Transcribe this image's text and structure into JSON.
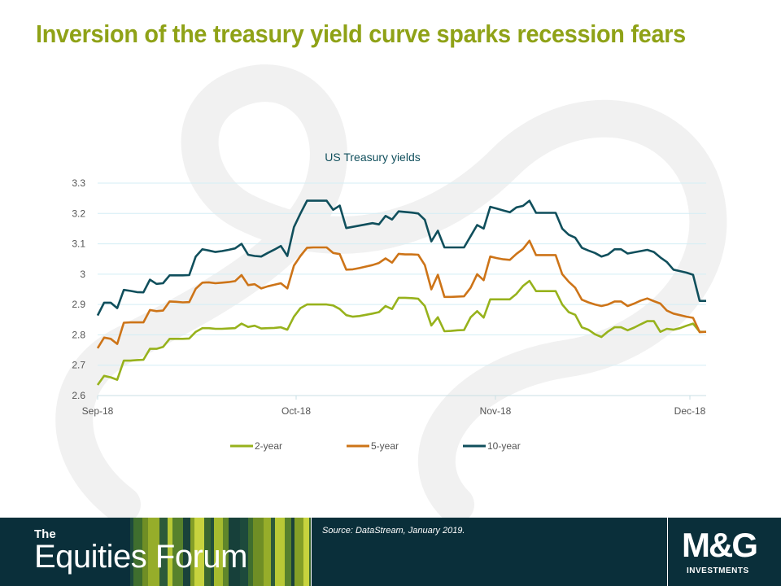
{
  "slide": {
    "title": "Inversion of the treasury yield curve sparks recession fears"
  },
  "colors": {
    "title": "#8fa217",
    "footer_bg": "#0a2f3a",
    "series_2y": "#97b21c",
    "series_5y": "#cd7418",
    "series_10y": "#104f5c",
    "gridline": "#d3eef5"
  },
  "chart_data": {
    "type": "line",
    "title": "US Treasury yields",
    "xlabel": "",
    "ylabel": "",
    "ylim": [
      2.6,
      3.3
    ],
    "yticks": [
      "2.6",
      "2.7",
      "2.8",
      "2.9",
      "3",
      "3.1",
      "3.2",
      "3.3"
    ],
    "x_tick_labels": [
      "Sep-18",
      "Oct-18",
      "Nov-18",
      "Dec-18"
    ],
    "grid": true,
    "legend_position": "bottom",
    "series": [
      {
        "name": "2-year",
        "color": "#97b21c",
        "values": [
          2.635,
          2.665,
          2.66,
          2.652,
          2.715,
          2.715,
          2.717,
          2.718,
          2.754,
          2.754,
          2.76,
          2.787,
          2.787,
          2.787,
          2.788,
          2.81,
          2.822,
          2.822,
          2.82,
          2.82,
          2.821,
          2.822,
          2.837,
          2.826,
          2.83,
          2.821,
          2.822,
          2.823,
          2.825,
          2.817,
          2.86,
          2.888,
          2.9,
          2.9,
          2.9,
          2.9,
          2.897,
          2.885,
          2.865,
          2.86,
          2.862,
          2.866,
          2.87,
          2.875,
          2.895,
          2.885,
          2.922,
          2.922,
          2.921,
          2.919,
          2.895,
          2.831,
          2.858,
          2.812,
          2.813,
          2.815,
          2.816,
          2.858,
          2.878,
          2.857,
          2.917,
          2.917,
          2.917,
          2.917,
          2.935,
          2.961,
          2.978,
          2.944,
          2.944,
          2.944,
          2.944,
          2.9,
          2.875,
          2.866,
          2.825,
          2.817,
          2.802,
          2.793,
          2.811,
          2.825,
          2.825,
          2.815,
          2.824,
          2.835,
          2.845,
          2.845,
          2.81,
          2.82,
          2.817,
          2.822,
          2.83,
          2.837,
          2.81,
          2.81
        ]
      },
      {
        "name": "5-year",
        "color": "#cd7418",
        "values": [
          2.756,
          2.791,
          2.787,
          2.77,
          2.84,
          2.841,
          2.841,
          2.841,
          2.882,
          2.878,
          2.88,
          2.91,
          2.909,
          2.907,
          2.908,
          2.952,
          2.972,
          2.973,
          2.97,
          2.972,
          2.974,
          2.977,
          2.997,
          2.964,
          2.967,
          2.953,
          2.96,
          2.965,
          2.97,
          2.953,
          3.028,
          3.06,
          3.087,
          3.088,
          3.088,
          3.088,
          3.07,
          3.066,
          3.015,
          3.016,
          3.02,
          3.025,
          3.03,
          3.037,
          3.052,
          3.038,
          3.067,
          3.065,
          3.065,
          3.064,
          3.03,
          2.95,
          2.998,
          2.925,
          2.925,
          2.926,
          2.927,
          2.955,
          3.0,
          2.98,
          3.058,
          3.053,
          3.049,
          3.047,
          3.067,
          3.083,
          3.11,
          3.063,
          3.063,
          3.063,
          3.063,
          3.0,
          2.975,
          2.955,
          2.916,
          2.907,
          2.9,
          2.895,
          2.9,
          2.91,
          2.91,
          2.895,
          2.903,
          2.913,
          2.92,
          2.911,
          2.903,
          2.88,
          2.87,
          2.865,
          2.86,
          2.856,
          2.809,
          2.81
        ]
      },
      {
        "name": "10-year",
        "color": "#104f5c",
        "values": [
          2.864,
          2.906,
          2.906,
          2.888,
          2.948,
          2.945,
          2.941,
          2.94,
          2.982,
          2.968,
          2.97,
          2.996,
          2.996,
          2.996,
          2.997,
          3.058,
          3.082,
          3.078,
          3.073,
          3.076,
          3.08,
          3.085,
          3.1,
          3.064,
          3.06,
          3.058,
          3.07,
          3.081,
          3.093,
          3.06,
          3.155,
          3.2,
          3.242,
          3.242,
          3.242,
          3.242,
          3.212,
          3.226,
          3.152,
          3.156,
          3.16,
          3.164,
          3.168,
          3.164,
          3.192,
          3.18,
          3.207,
          3.205,
          3.203,
          3.2,
          3.179,
          3.108,
          3.143,
          3.088,
          3.088,
          3.088,
          3.088,
          3.125,
          3.162,
          3.15,
          3.222,
          3.216,
          3.21,
          3.204,
          3.22,
          3.225,
          3.242,
          3.202,
          3.202,
          3.202,
          3.202,
          3.15,
          3.13,
          3.12,
          3.087,
          3.078,
          3.07,
          3.058,
          3.065,
          3.082,
          3.082,
          3.068,
          3.072,
          3.076,
          3.08,
          3.073,
          3.055,
          3.04,
          3.015,
          3.01,
          3.005,
          2.998,
          2.912,
          2.912
        ]
      }
    ]
  },
  "footer": {
    "brand_small": "The",
    "brand_big": "Equities Forum",
    "source": "Source: DataStream, January 2019.",
    "logo_main": "M&G",
    "logo_sub": "INVESTMENTS"
  }
}
